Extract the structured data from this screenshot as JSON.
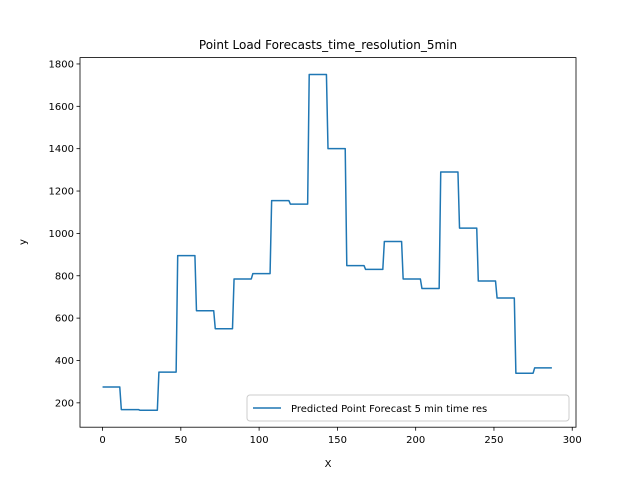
{
  "chart_data": {
    "type": "line",
    "title": "Point Load Forecasts_time_resolution_5min",
    "xlabel": "X",
    "ylabel": "y",
    "xlim": [
      -14.4,
      302.4
    ],
    "ylim": [
      85,
      1830
    ],
    "xticks": [
      0,
      50,
      100,
      150,
      200,
      250,
      300
    ],
    "yticks": [
      200,
      400,
      600,
      800,
      1000,
      1200,
      1400,
      1600,
      1800
    ],
    "grid": false,
    "legend_position": "lower right",
    "color": "#1f77b4",
    "series": [
      {
        "name": "Predicted Point Forecast 5 min time res",
        "x": [
          0,
          11,
          12,
          23,
          24,
          35,
          36,
          47,
          48,
          59,
          60,
          71,
          72,
          83,
          84,
          95,
          96,
          107,
          108,
          119,
          120,
          131,
          132,
          143,
          144,
          155,
          156,
          167,
          168,
          179,
          180,
          191,
          192,
          203,
          204,
          215,
          216,
          227,
          228,
          239,
          240,
          251,
          252,
          263,
          264,
          275,
          276,
          287
        ],
        "y": [
          275,
          275,
          168,
          168,
          165,
          165,
          345,
          345,
          895,
          895,
          635,
          635,
          550,
          550,
          785,
          785,
          810,
          810,
          1155,
          1155,
          1138,
          1138,
          1750,
          1750,
          1400,
          1400,
          848,
          848,
          830,
          830,
          962,
          962,
          785,
          785,
          740,
          740,
          1290,
          1290,
          1025,
          1025,
          775,
          775,
          695,
          695,
          340,
          340,
          365,
          365
        ]
      }
    ]
  }
}
